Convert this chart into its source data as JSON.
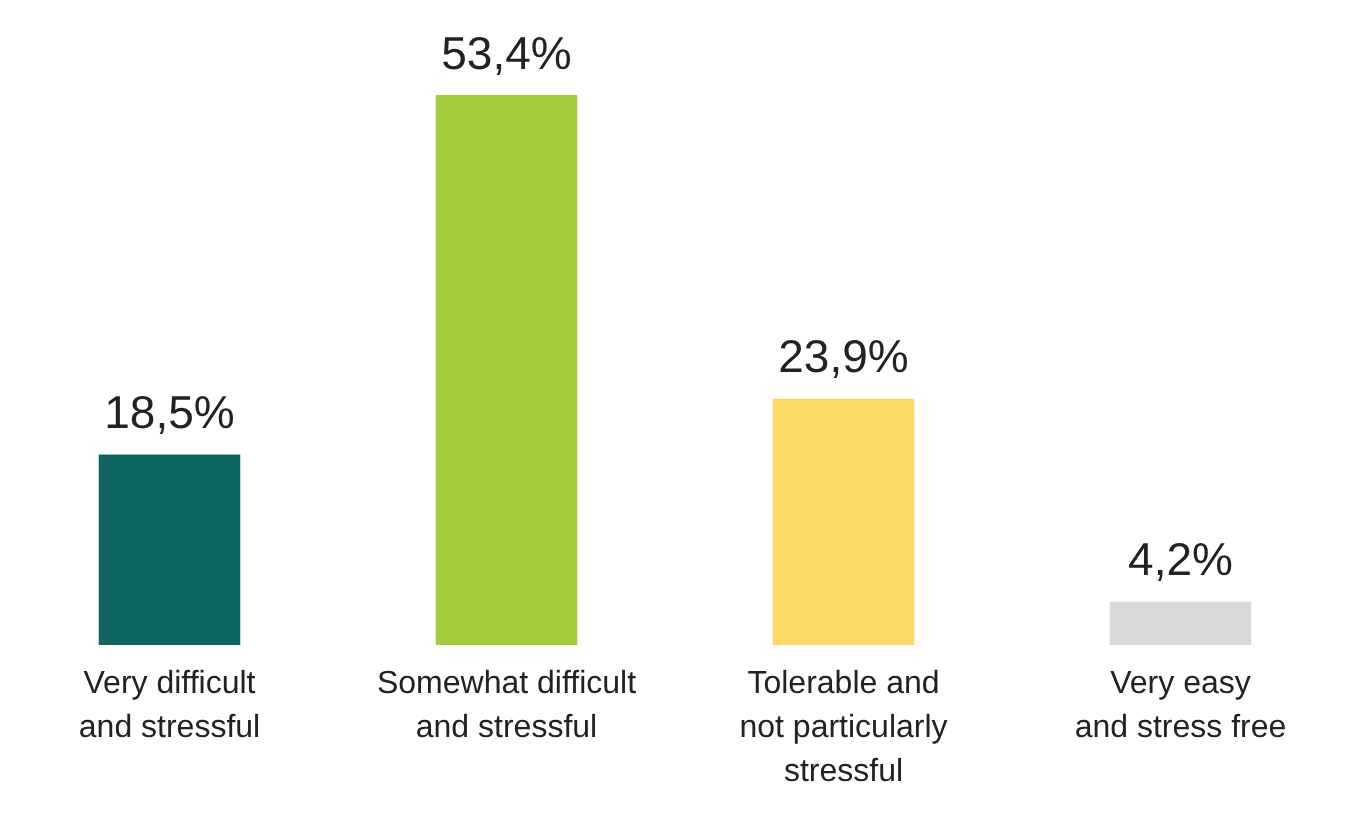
{
  "chart_data": {
    "type": "bar",
    "categories": [
      "Very difficult\nand stressful",
      "Somewhat difficult\nand stressful",
      "Tolerable and\nnot particularly\nstressful",
      "Very easy\nand stress free"
    ],
    "values": [
      18.5,
      53.4,
      23.9,
      4.2
    ],
    "colors": [
      "#0e6660",
      "#a3cc3a",
      "#fdd966",
      "#d9d9d9"
    ],
    "value_labels": [
      "18,5%",
      "53,4%",
      "23,9%",
      "4,2%"
    ],
    "grid": false
  }
}
